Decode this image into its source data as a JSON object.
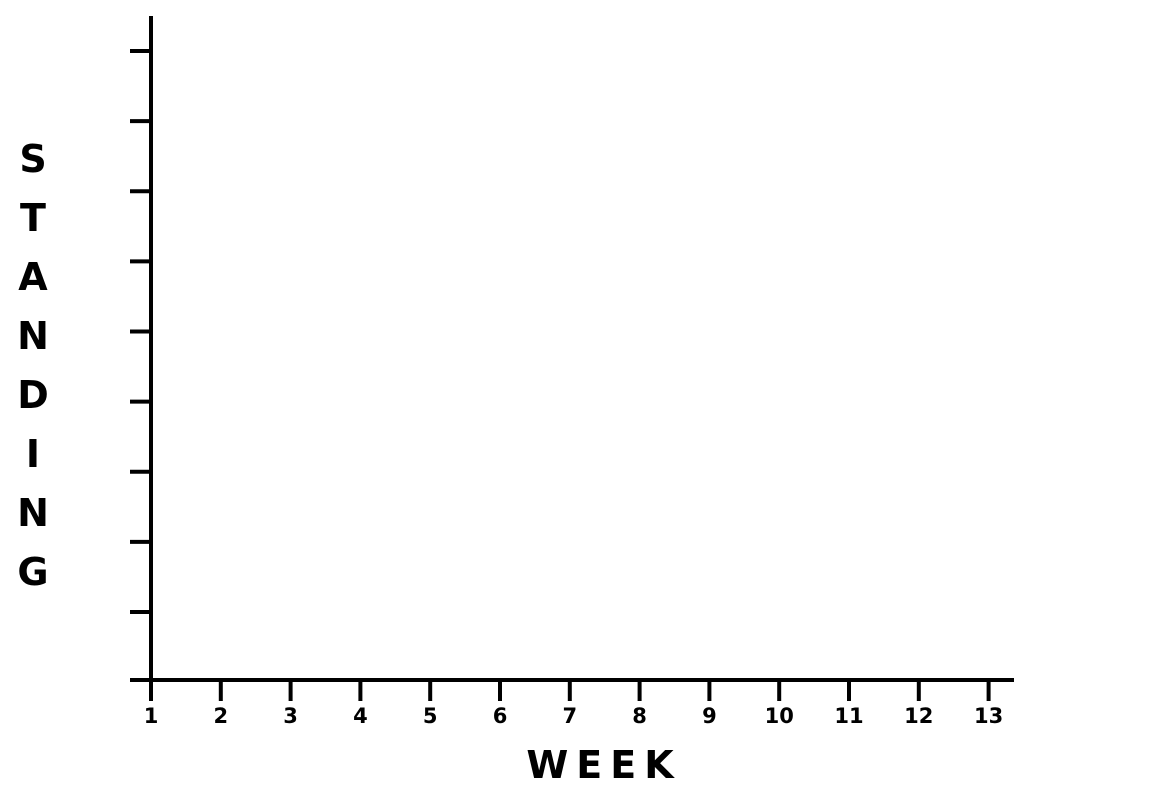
{
  "chart_data": {
    "type": "line",
    "title": "",
    "xlabel": "WEEK",
    "ylabel": "STANDING",
    "x": [
      1,
      2,
      3,
      4,
      5,
      6,
      7,
      8,
      9,
      10,
      11,
      12,
      13
    ],
    "x_tick_labels": [
      "1",
      "2",
      "3",
      "4",
      "5",
      "6",
      "7",
      "8",
      "9",
      "10",
      "11",
      "12",
      "13"
    ],
    "y_tick_count": 9,
    "y_tick_labels": [],
    "series": [],
    "grid": false,
    "legend": "none",
    "colors": {
      "axis": "#000000",
      "background": "#ffffff"
    }
  }
}
